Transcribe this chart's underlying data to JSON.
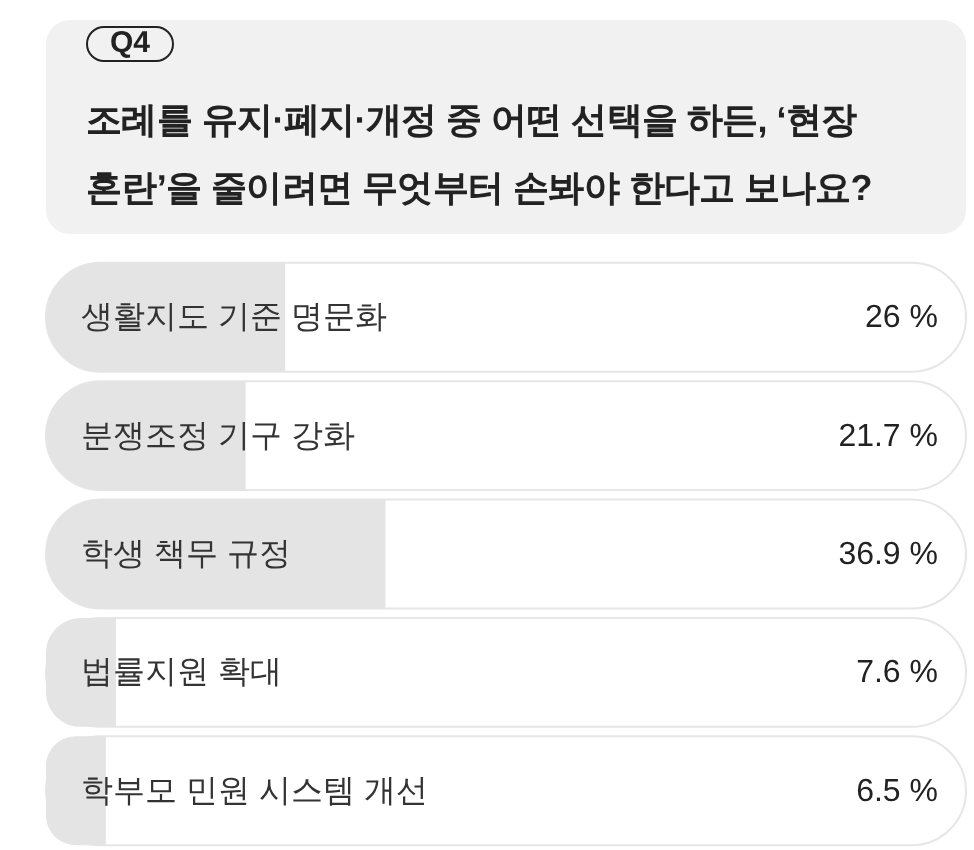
{
  "chart_data": {
    "type": "bar",
    "orientation": "horizontal",
    "title": "조례를 유지·폐지·개정 중 어떤 선택을 하든, ‘현장 혼란’을 줄이려면 무엇부터 손봐야 한다고 보나요?",
    "annotations": [
      "Q4"
    ],
    "categories": [
      "생활지도 기준 명문화",
      "분쟁조정 기구 강화",
      "학생 책무 규정",
      "법률지원 확대",
      "학부모 민원 시스템 개선"
    ],
    "values": [
      26,
      21.7,
      36.9,
      7.6,
      6.5
    ],
    "value_labels": [
      "26 %",
      "21.7 %",
      "36.9 %",
      "7.6 %",
      "6.5 %"
    ],
    "color": "#e4e4e4",
    "xlim": [
      0,
      100
    ],
    "tick_labels": "y"
  }
}
